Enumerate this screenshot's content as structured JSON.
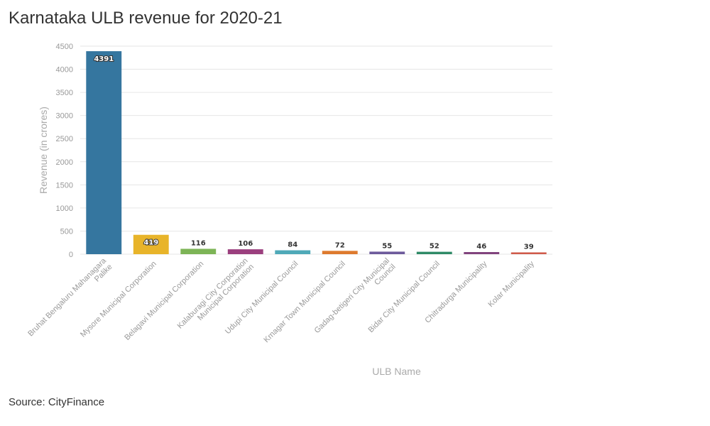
{
  "title": "Karnataka ULB revenue for 2020-21",
  "source": "Source: CityFinance",
  "chart_data": {
    "type": "bar",
    "title": "Karnataka ULB revenue for 2020-21",
    "xlabel": "ULB Name",
    "ylabel": "Revenue (in crores)",
    "ylim": [
      0,
      4500
    ],
    "yticks": [
      0,
      500,
      1000,
      1500,
      2000,
      2500,
      3000,
      3500,
      4000,
      4500
    ],
    "grid": true,
    "legend": "none",
    "categories": [
      [
        "Bruhat Bengaluru Mahanagara",
        "Palike"
      ],
      [
        "Mysore Municipal Corporation"
      ],
      [
        "Belagavi Municipal Corporation"
      ],
      [
        "Kalaburagi City Corporation",
        "Municipal Corporation"
      ],
      [
        "Udupi City Municipal Council"
      ],
      [
        "Krnagar Town Municipal Council"
      ],
      [
        "Gadag-betigeri City Municipal",
        "Council"
      ],
      [
        "Bidar City Municipal Council"
      ],
      [
        "Chitradurga Municipality"
      ],
      [
        "Kolar Municipality"
      ]
    ],
    "values": [
      4391,
      419,
      116,
      106,
      84,
      72,
      55,
      52,
      46,
      39
    ],
    "colors": [
      "#35769f",
      "#e8b42a",
      "#7db456",
      "#9b3f7e",
      "#4fa9b8",
      "#dd7a2e",
      "#6d5a9b",
      "#2e8a66",
      "#81437d",
      "#cf5a4a"
    ],
    "label_inside": [
      true,
      true,
      false,
      false,
      false,
      false,
      false,
      false,
      false,
      false
    ]
  }
}
